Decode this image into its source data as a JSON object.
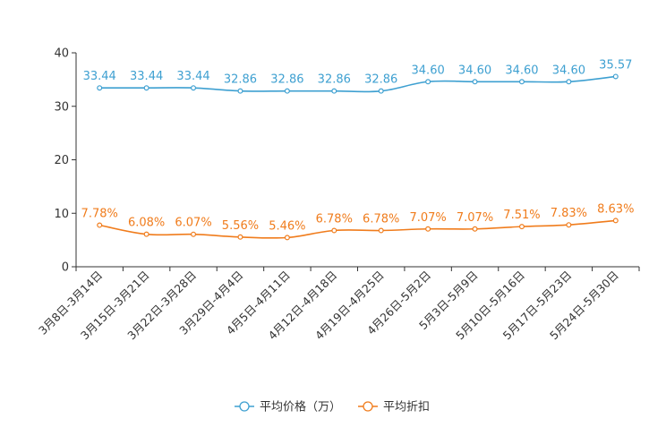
{
  "chart_data": {
    "type": "line",
    "title": "",
    "xlabel": "",
    "ylabel": "",
    "ylim": [
      0,
      40
    ],
    "yticks": [
      0,
      10,
      20,
      30,
      40
    ],
    "grid": false,
    "legend_position": "bottom-center",
    "categories": [
      "3月8日-3月14日",
      "3月15日-3月21日",
      "3月22日-3月28日",
      "3月29日-4月4日",
      "4月5日-4月11日",
      "4月12日-4月18日",
      "4月19日-4月25日",
      "4月26日-5月2日",
      "5月3日-5月9日",
      "5月10日-5月16日",
      "5月17日-5月23日",
      "5月24日-5月30日"
    ],
    "series": [
      {
        "name": "平均价格（万）",
        "color": "#3ea0d1",
        "values": [
          33.44,
          33.44,
          33.44,
          32.86,
          32.86,
          32.86,
          32.86,
          34.6,
          34.6,
          34.6,
          34.6,
          35.57
        ],
        "labels": [
          "33.44",
          "33.44",
          "33.44",
          "32.86",
          "32.86",
          "32.86",
          "32.86",
          "34.60",
          "34.60",
          "34.60",
          "34.60",
          "35.57"
        ]
      },
      {
        "name": "平均折扣",
        "color": "#f07c1c",
        "values": [
          7.78,
          6.08,
          6.07,
          5.56,
          5.46,
          6.78,
          6.78,
          7.07,
          7.07,
          7.51,
          7.83,
          8.63
        ],
        "labels": [
          "7.78%",
          "6.08%",
          "6.07%",
          "5.56%",
          "5.46%",
          "6.78%",
          "6.78%",
          "7.07%",
          "7.07%",
          "7.51%",
          "7.83%",
          "8.63%"
        ]
      }
    ]
  }
}
